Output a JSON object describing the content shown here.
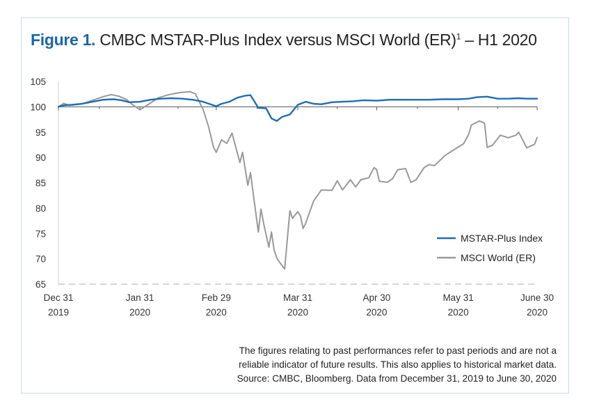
{
  "title": {
    "figure_label": "Figure 1.",
    "text": "CMBC MSTAR-Plus Index versus MSCI World (ER)",
    "footnote_mark": "1",
    "suffix": " – H1 2020"
  },
  "notes": [
    "The figures relating to past performances refer to past periods and are not a",
    "reliable indicator of future results. This also applies to historical market data.",
    "Source: CMBC, Bloomberg. Data from December 31, 2019 to June 30, 2020"
  ],
  "colors": {
    "mstar": "#1f6db5",
    "msci": "#999999",
    "title_accent": "#1a66a8",
    "grid": "#d6d6d6"
  },
  "chart_data": {
    "type": "line",
    "title": "CMBC MSTAR-Plus Index versus MSCI World (ER) – H1 2020",
    "xlabel": "",
    "ylabel": "",
    "ylim": [
      65,
      105
    ],
    "yticks": [
      65,
      70,
      75,
      80,
      85,
      90,
      95,
      100,
      105
    ],
    "xlim": [
      "2019-12-31",
      "2020-06-30"
    ],
    "xticks": [
      {
        "date": "2019-12-31",
        "line1": "Dec 31",
        "line2": "2019"
      },
      {
        "date": "2020-01-31",
        "line1": "Jan 31",
        "line2": "2020"
      },
      {
        "date": "2020-02-29",
        "line1": "Feb 29",
        "line2": "2020"
      },
      {
        "date": "2020-03-31",
        "line1": "Mar 31",
        "line2": "2020"
      },
      {
        "date": "2020-04-30",
        "line1": "Apr 30",
        "line2": "2020"
      },
      {
        "date": "2020-05-31",
        "line1": "May 31",
        "line2": "2020"
      },
      {
        "date": "2020-06-30",
        "line1": "June 30",
        "line2": "2020"
      }
    ],
    "grid": "horizontal dashed at 65 only",
    "legend": "right",
    "series": [
      {
        "name": "MSTAR-Plus Index",
        "color": "#1f6db5",
        "points": [
          [
            "2019-12-31",
            100.0
          ],
          [
            "2020-01-02",
            100.3
          ],
          [
            "2020-01-05",
            100.4
          ],
          [
            "2020-01-09",
            100.6
          ],
          [
            "2020-01-13",
            101.0
          ],
          [
            "2020-01-17",
            101.4
          ],
          [
            "2020-01-21",
            101.5
          ],
          [
            "2020-01-24",
            101.3
          ],
          [
            "2020-01-27",
            100.9
          ],
          [
            "2020-01-31",
            101.0
          ],
          [
            "2020-02-04",
            101.4
          ],
          [
            "2020-02-08",
            101.6
          ],
          [
            "2020-02-12",
            101.7
          ],
          [
            "2020-02-16",
            101.6
          ],
          [
            "2020-02-20",
            101.4
          ],
          [
            "2020-02-24",
            101.0
          ],
          [
            "2020-02-28",
            100.3
          ],
          [
            "2020-02-29",
            100.1
          ],
          [
            "2020-03-02",
            100.6
          ],
          [
            "2020-03-05",
            101.0
          ],
          [
            "2020-03-08",
            101.8
          ],
          [
            "2020-03-11",
            102.2
          ],
          [
            "2020-03-13",
            102.3
          ],
          [
            "2020-03-16",
            99.8
          ],
          [
            "2020-03-19",
            99.7
          ],
          [
            "2020-03-21",
            97.7
          ],
          [
            "2020-03-23",
            97.2
          ],
          [
            "2020-03-25",
            98.0
          ],
          [
            "2020-03-28",
            98.5
          ],
          [
            "2020-03-31",
            100.4
          ],
          [
            "2020-04-03",
            101.0
          ],
          [
            "2020-04-06",
            100.6
          ],
          [
            "2020-04-09",
            100.5
          ],
          [
            "2020-04-13",
            100.9
          ],
          [
            "2020-04-17",
            101.0
          ],
          [
            "2020-04-21",
            101.1
          ],
          [
            "2020-04-25",
            101.3
          ],
          [
            "2020-04-30",
            101.2
          ],
          [
            "2020-05-05",
            101.4
          ],
          [
            "2020-05-10",
            101.4
          ],
          [
            "2020-05-15",
            101.4
          ],
          [
            "2020-05-20",
            101.4
          ],
          [
            "2020-05-25",
            101.5
          ],
          [
            "2020-05-31",
            101.5
          ],
          [
            "2020-06-04",
            101.6
          ],
          [
            "2020-06-07",
            101.9
          ],
          [
            "2020-06-11",
            102.0
          ],
          [
            "2020-06-15",
            101.6
          ],
          [
            "2020-06-19",
            101.6
          ],
          [
            "2020-06-23",
            101.7
          ],
          [
            "2020-06-26",
            101.6
          ],
          [
            "2020-06-30",
            101.6
          ]
        ]
      },
      {
        "name": "MSCI World (ER)",
        "color": "#999999",
        "points": [
          [
            "2019-12-31",
            100.0
          ],
          [
            "2020-01-02",
            100.7
          ],
          [
            "2020-01-04",
            100.3
          ],
          [
            "2020-01-09",
            100.6
          ],
          [
            "2020-01-13",
            101.3
          ],
          [
            "2020-01-17",
            102.0
          ],
          [
            "2020-01-20",
            102.4
          ],
          [
            "2020-01-23",
            102.1
          ],
          [
            "2020-01-26",
            101.4
          ],
          [
            "2020-01-28",
            100.5
          ],
          [
            "2020-01-31",
            99.4
          ],
          [
            "2020-02-03",
            100.4
          ],
          [
            "2020-02-07",
            101.8
          ],
          [
            "2020-02-11",
            102.4
          ],
          [
            "2020-02-15",
            102.8
          ],
          [
            "2020-02-19",
            103.0
          ],
          [
            "2020-02-21",
            102.6
          ],
          [
            "2020-02-24",
            99.5
          ],
          [
            "2020-02-26",
            96.2
          ],
          [
            "2020-02-28",
            92.0
          ],
          [
            "2020-02-29",
            91.0
          ],
          [
            "2020-03-02",
            93.5
          ],
          [
            "2020-03-04",
            92.8
          ],
          [
            "2020-03-06",
            94.8
          ],
          [
            "2020-03-09",
            89.0
          ],
          [
            "2020-03-10",
            91.0
          ],
          [
            "2020-03-12",
            84.5
          ],
          [
            "2020-03-13",
            87.0
          ],
          [
            "2020-03-16",
            75.3
          ],
          [
            "2020-03-17",
            79.8
          ],
          [
            "2020-03-18",
            77.0
          ],
          [
            "2020-03-20",
            72.3
          ],
          [
            "2020-03-21",
            75.3
          ],
          [
            "2020-03-22",
            71.7
          ],
          [
            "2020-03-23",
            70.2
          ],
          [
            "2020-03-24",
            69.4
          ],
          [
            "2020-03-26",
            68.0
          ],
          [
            "2020-03-27",
            73.8
          ],
          [
            "2020-03-28",
            79.5
          ],
          [
            "2020-03-29",
            78.0
          ],
          [
            "2020-03-31",
            79.3
          ],
          [
            "2020-04-01",
            78.5
          ],
          [
            "2020-04-02",
            76.0
          ],
          [
            "2020-04-03",
            77.0
          ],
          [
            "2020-04-06",
            81.4
          ],
          [
            "2020-04-09",
            83.6
          ],
          [
            "2020-04-13",
            83.5
          ],
          [
            "2020-04-15",
            85.4
          ],
          [
            "2020-04-17",
            83.6
          ],
          [
            "2020-04-20",
            85.6
          ],
          [
            "2020-04-22",
            84.2
          ],
          [
            "2020-04-24",
            85.6
          ],
          [
            "2020-04-27",
            86.0
          ],
          [
            "2020-04-29",
            88.0
          ],
          [
            "2020-04-30",
            87.6
          ],
          [
            "2020-05-01",
            85.3
          ],
          [
            "2020-05-04",
            85.1
          ],
          [
            "2020-05-06",
            85.8
          ],
          [
            "2020-05-08",
            87.6
          ],
          [
            "2020-05-11",
            87.8
          ],
          [
            "2020-05-13",
            85.1
          ],
          [
            "2020-05-15",
            85.6
          ],
          [
            "2020-05-18",
            88.0
          ],
          [
            "2020-05-20",
            88.6
          ],
          [
            "2020-05-22",
            88.4
          ],
          [
            "2020-05-26",
            90.4
          ],
          [
            "2020-05-29",
            91.4
          ],
          [
            "2020-06-02",
            92.7
          ],
          [
            "2020-06-04",
            94.6
          ],
          [
            "2020-06-05",
            96.4
          ],
          [
            "2020-06-08",
            97.2
          ],
          [
            "2020-06-10",
            96.8
          ],
          [
            "2020-06-11",
            92.0
          ],
          [
            "2020-06-13",
            92.4
          ],
          [
            "2020-06-16",
            94.4
          ],
          [
            "2020-06-19",
            93.9
          ],
          [
            "2020-06-22",
            94.4
          ],
          [
            "2020-06-23",
            95.0
          ],
          [
            "2020-06-25",
            93.0
          ],
          [
            "2020-06-26",
            91.9
          ],
          [
            "2020-06-29",
            92.6
          ],
          [
            "2020-06-30",
            93.9
          ]
        ]
      }
    ]
  }
}
